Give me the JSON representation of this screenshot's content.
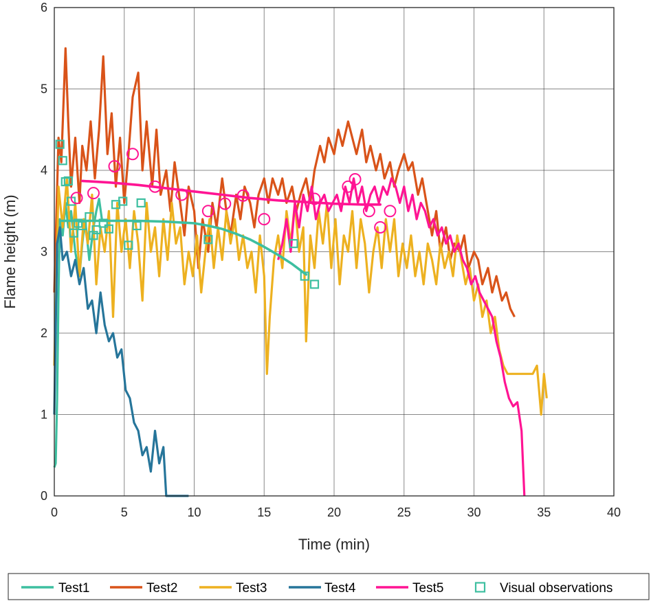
{
  "chart_data": {
    "type": "line",
    "xlabel": "Time (min)",
    "ylabel": "Flame height (m)",
    "xlim": [
      0,
      40
    ],
    "ylim": [
      0,
      6
    ],
    "xticks": [
      "0",
      "5",
      "10",
      "15",
      "20",
      "25",
      "30",
      "35",
      "40"
    ],
    "yticks": [
      "0",
      "1",
      "2",
      "3",
      "4",
      "5",
      "6"
    ],
    "grid": true,
    "legend_position": "bottom",
    "legend": [
      "Test1",
      "Test2",
      "Test3",
      "Test4",
      "Test5",
      "Visual observations"
    ],
    "colors": {
      "Test1": "#3dbfa0",
      "Test2": "#d95319",
      "Test3": "#edb120",
      "Test4": "#26759a",
      "Test5": "#ff1493",
      "Visual observations": "#3dbfa0"
    },
    "series": [
      {
        "name": "Test1",
        "x": [
          0,
          0.1,
          0.2,
          0.3,
          0.4,
          0.6,
          0.8,
          1.0,
          1.2,
          1.5,
          1.8,
          2.0,
          2.2,
          2.5,
          2.8,
          3.0,
          3.2,
          3.4
        ],
        "y": [
          0.35,
          0.4,
          1.2,
          2.5,
          3.4,
          3.2,
          3.6,
          3.3,
          3.5,
          3.0,
          2.7,
          3.1,
          3.4,
          2.9,
          3.3,
          3.5,
          3.65,
          3.4
        ]
      },
      {
        "name": "Test2",
        "x": [
          0,
          0.3,
          0.5,
          0.8,
          1.0,
          1.2,
          1.5,
          1.8,
          2.0,
          2.3,
          2.6,
          2.9,
          3.2,
          3.5,
          3.8,
          4.1,
          4.4,
          4.7,
          5.0,
          5.3,
          5.6,
          6.0,
          6.3,
          6.6,
          7.0,
          7.3,
          7.6,
          8.0,
          8.3,
          8.6,
          9.0,
          9.3,
          9.6,
          10.0,
          10.3,
          10.6,
          11.0,
          11.3,
          11.6,
          12.0,
          12.3,
          12.6,
          13.0,
          13.3,
          13.6,
          14.0,
          14.3,
          14.6,
          15.0,
          15.3,
          15.6,
          16.0,
          16.3,
          16.6,
          17.0,
          17.3,
          17.6,
          18.0,
          18.3,
          18.6,
          19.0,
          19.3,
          19.6,
          20.0,
          20.3,
          20.6,
          21.0,
          21.3,
          21.6,
          22.0,
          22.3,
          22.6,
          23.0,
          23.3,
          23.6,
          24.0,
          24.3,
          24.6,
          25.0,
          25.3,
          25.6,
          26.0,
          26.3,
          26.6,
          27.0,
          27.3,
          27.6,
          28.0,
          28.3,
          28.6,
          29.0,
          29.3,
          29.6,
          30.0,
          30.3,
          30.6,
          31.0,
          31.3,
          31.6,
          32.0,
          32.3,
          32.6,
          32.9
        ],
        "y": [
          2.5,
          4.4,
          4.1,
          5.5,
          4.6,
          3.8,
          4.4,
          3.6,
          4.3,
          4.0,
          4.6,
          3.9,
          4.5,
          5.4,
          4.2,
          4.7,
          3.8,
          4.4,
          3.6,
          4.2,
          4.9,
          5.2,
          4.0,
          4.6,
          3.8,
          4.5,
          3.7,
          4.0,
          3.5,
          4.1,
          3.6,
          3.2,
          3.8,
          3.5,
          2.8,
          3.4,
          3.0,
          3.6,
          3.3,
          3.9,
          3.5,
          3.2,
          3.7,
          3.4,
          3.8,
          3.6,
          3.3,
          3.7,
          3.9,
          3.6,
          3.9,
          3.7,
          3.9,
          3.6,
          3.8,
          3.5,
          3.7,
          3.9,
          3.6,
          4.0,
          4.3,
          4.1,
          4.4,
          4.2,
          4.5,
          4.3,
          4.6,
          4.4,
          4.2,
          4.5,
          4.1,
          4.3,
          4.0,
          4.2,
          3.9,
          4.1,
          3.8,
          4.0,
          4.2,
          4.0,
          4.1,
          3.7,
          3.9,
          3.6,
          3.2,
          3.5,
          3.0,
          3.3,
          2.9,
          3.1,
          3.0,
          3.2,
          2.8,
          3.0,
          2.9,
          2.6,
          2.8,
          2.5,
          2.7,
          2.4,
          2.5,
          2.3,
          2.2
        ]
      },
      {
        "name": "Test3",
        "x": [
          0,
          0.3,
          0.6,
          0.9,
          1.2,
          1.5,
          1.8,
          2.1,
          2.4,
          2.7,
          3.0,
          3.3,
          3.6,
          3.9,
          4.2,
          4.5,
          4.8,
          5.1,
          5.4,
          5.7,
          6.0,
          6.3,
          6.6,
          6.9,
          7.2,
          7.5,
          7.8,
          8.1,
          8.4,
          8.7,
          9.0,
          9.3,
          9.6,
          9.9,
          10.2,
          10.5,
          10.8,
          11.1,
          11.4,
          11.7,
          12.0,
          12.3,
          12.6,
          12.9,
          13.2,
          13.5,
          13.8,
          14.1,
          14.4,
          14.7,
          15.0,
          15.2,
          15.4,
          15.7,
          16.0,
          16.3,
          16.6,
          16.9,
          17.2,
          17.5,
          17.8,
          18.0,
          18.3,
          18.6,
          18.9,
          19.2,
          19.5,
          19.8,
          20.1,
          20.4,
          20.7,
          21.0,
          21.3,
          21.6,
          21.9,
          22.2,
          22.5,
          22.8,
          23.1,
          23.4,
          23.7,
          24.0,
          24.3,
          24.6,
          24.9,
          25.2,
          25.5,
          25.8,
          26.1,
          26.4,
          26.7,
          27.0,
          27.3,
          27.6,
          27.9,
          28.2,
          28.5,
          28.8,
          29.1,
          29.4,
          29.7,
          30.0,
          30.3,
          30.6,
          30.9,
          31.2,
          31.5,
          31.8,
          32.1,
          32.4,
          32.7,
          33.0,
          33.3,
          33.6,
          33.9,
          34.2,
          34.5,
          34.8,
          35.0,
          35.2
        ],
        "y": [
          1.6,
          3.8,
          3.3,
          3.9,
          3.0,
          3.6,
          2.7,
          3.4,
          3.1,
          3.7,
          2.6,
          3.3,
          3.0,
          3.5,
          2.2,
          3.6,
          3.0,
          3.4,
          2.8,
          3.5,
          3.1,
          2.4,
          3.6,
          3.0,
          3.3,
          2.7,
          3.4,
          2.9,
          3.6,
          3.1,
          3.3,
          2.6,
          3.0,
          2.7,
          3.2,
          2.5,
          3.0,
          3.4,
          2.8,
          3.3,
          2.9,
          3.5,
          3.1,
          3.4,
          2.9,
          3.2,
          2.8,
          3.0,
          2.5,
          3.2,
          2.7,
          1.5,
          2.2,
          2.9,
          3.2,
          2.8,
          3.5,
          3.1,
          3.6,
          3.0,
          3.3,
          1.9,
          3.2,
          2.8,
          3.5,
          3.1,
          3.6,
          2.8,
          3.4,
          2.6,
          3.2,
          3.0,
          3.5,
          2.8,
          3.4,
          3.1,
          2.5,
          3.0,
          3.3,
          2.8,
          3.4,
          3.0,
          3.4,
          2.7,
          3.1,
          2.8,
          3.2,
          2.7,
          3.0,
          2.6,
          3.1,
          2.9,
          2.6,
          3.1,
          2.8,
          3.0,
          2.7,
          3.2,
          2.9,
          2.6,
          2.8,
          2.4,
          2.6,
          2.2,
          2.4,
          2.0,
          2.2,
          1.8,
          1.6,
          1.5,
          1.5,
          1.5,
          1.5,
          1.5,
          1.5,
          1.5,
          1.6,
          1.0,
          1.5,
          1.2
        ]
      },
      {
        "name": "Test4",
        "x": [
          0,
          0.2,
          0.4,
          0.6,
          0.9,
          1.2,
          1.5,
          1.8,
          2.1,
          2.4,
          2.7,
          3.0,
          3.3,
          3.6,
          3.9,
          4.2,
          4.5,
          4.8,
          5.1,
          5.4,
          5.7,
          6.0,
          6.3,
          6.6,
          6.9,
          7.2,
          7.5,
          7.8,
          8.0,
          9.6
        ],
        "y": [
          1.0,
          3.1,
          3.3,
          2.9,
          3.0,
          2.7,
          2.9,
          2.6,
          2.8,
          2.3,
          2.4,
          2.0,
          2.5,
          2.1,
          1.9,
          2.0,
          1.7,
          1.8,
          1.3,
          1.2,
          0.9,
          0.8,
          0.5,
          0.6,
          0.3,
          0.8,
          0.4,
          0.6,
          0.0,
          0.0
        ]
      },
      {
        "name": "Test5",
        "x": [
          16.0,
          16.3,
          16.6,
          16.9,
          17.2,
          17.5,
          17.8,
          18.1,
          18.4,
          18.7,
          19.0,
          19.3,
          19.6,
          19.9,
          20.2,
          20.5,
          20.8,
          21.1,
          21.4,
          21.7,
          22.0,
          22.3,
          22.6,
          22.9,
          23.2,
          23.5,
          23.8,
          24.1,
          24.4,
          24.7,
          25.0,
          25.3,
          25.6,
          25.9,
          26.2,
          26.5,
          26.8,
          27.1,
          27.4,
          27.7,
          28.0,
          28.3,
          28.6,
          28.9,
          29.2,
          29.5,
          29.8,
          30.1,
          30.4,
          30.7,
          31.0,
          31.3,
          31.6,
          31.9,
          32.2,
          32.5,
          32.8,
          33.1,
          33.4,
          33.6
        ],
        "y": [
          2.9,
          3.1,
          3.4,
          3.0,
          3.6,
          3.3,
          3.7,
          3.5,
          3.8,
          3.4,
          3.6,
          3.7,
          3.5,
          3.6,
          3.7,
          3.5,
          3.8,
          3.6,
          3.9,
          3.6,
          3.8,
          3.5,
          3.7,
          3.8,
          3.6,
          3.8,
          3.7,
          3.9,
          3.8,
          3.6,
          3.8,
          3.5,
          3.7,
          3.4,
          3.6,
          3.5,
          3.3,
          3.4,
          3.2,
          3.3,
          3.1,
          3.2,
          3.0,
          3.1,
          2.9,
          2.8,
          2.6,
          2.7,
          2.5,
          2.4,
          2.3,
          2.2,
          1.9,
          1.7,
          1.4,
          1.2,
          1.1,
          1.15,
          0.8,
          0.0
        ]
      }
    ],
    "fit_curves": [
      {
        "color": "#3dbfa0",
        "x": [
          0.5,
          2,
          4,
          6,
          8,
          10,
          11,
          12,
          13,
          14,
          15,
          16,
          17,
          18
        ],
        "y": [
          3.38,
          3.38,
          3.38,
          3.38,
          3.37,
          3.35,
          3.32,
          3.28,
          3.22,
          3.15,
          3.06,
          2.96,
          2.85,
          2.72
        ]
      },
      {
        "color": "#ff1493",
        "x": [
          2,
          4,
          6,
          8,
          10,
          12,
          14,
          16,
          18,
          20,
          22,
          23.3
        ],
        "y": [
          3.87,
          3.85,
          3.82,
          3.78,
          3.74,
          3.7,
          3.66,
          3.63,
          3.61,
          3.59,
          3.58,
          3.58
        ]
      }
    ],
    "markers": [
      {
        "shape": "square",
        "color": "#3dbfa0",
        "x": [
          0.4,
          0.6,
          0.8,
          1.0,
          1.2,
          1.4,
          1.7,
          2.0,
          2.5,
          2.8,
          3.0,
          3.5,
          3.9,
          4.4,
          4.9,
          5.3,
          5.9,
          6.2,
          11.0,
          17.1,
          17.9,
          18.6
        ],
        "y": [
          4.32,
          4.12,
          3.86,
          3.87,
          3.62,
          3.23,
          3.35,
          3.32,
          3.43,
          3.2,
          3.27,
          3.35,
          3.28,
          3.58,
          3.62,
          3.08,
          3.32,
          3.6,
          3.15,
          3.1,
          2.7,
          2.6
        ]
      },
      {
        "shape": "circle",
        "color": "#ff1493",
        "x": [
          1.6,
          2.8,
          4.3,
          5.6,
          7.2,
          9.1,
          11.0,
          12.2,
          13.5,
          15.0,
          18.6,
          21.0,
          21.5,
          22.5,
          23.3,
          24.0
        ],
        "y": [
          3.66,
          3.72,
          4.05,
          4.2,
          3.8,
          3.7,
          3.5,
          3.59,
          3.69,
          3.4,
          3.65,
          3.8,
          3.89,
          3.5,
          3.3,
          3.5
        ]
      }
    ]
  }
}
